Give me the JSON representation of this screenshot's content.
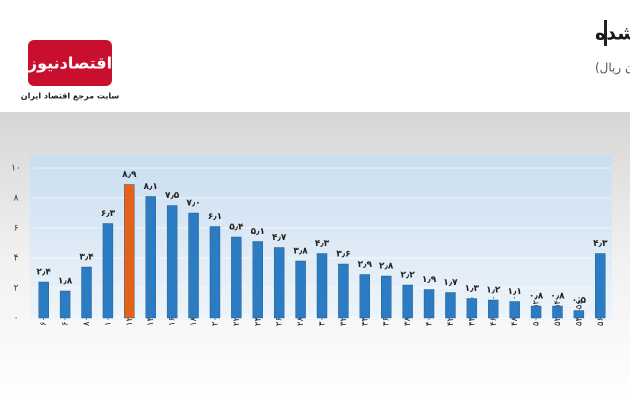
{
  "logo": {
    "name": "اقتصادنیوز",
    "tagline": "سایت مرجع اقتصاد ایران"
  },
  "chart_data": {
    "type": "bar",
    "title": "توزيع فراواني تعداد واحدهاي مسكوني معامله شده",
    "subtitle": "بر حسب قيمت يک متر مربع بنا  (ميليون ريال)",
    "categories": [
      "کمتر از ۶۰",
      "۶۰-۸۰",
      "۸۰-۱۰۰",
      "۱۰۰-۱۲۰",
      "۱۲۰-۱۴۰",
      "۱۴۰-۱۶۰",
      "۱۶۰-۱۸۰",
      "۱۸۰-۲۰۰",
      "۲۰۰-۲۲۰",
      "۲۲۰-۲۴۰",
      "۲۴۰-۲۶۰",
      "۲۶۰-۲۸۰",
      "۲۸۰-۳۰۰",
      "۳۰۰-۳۲۰",
      "۳۲۰-۳۴۰",
      "۳۴۰-۳۶۰",
      "۳۶۰-۳۸۰",
      "۳۸۰-۴۰۰",
      "۴۰۰-۴۲۰",
      "۴۲۰-۴۴۰",
      "۴۴۰-۴۶۰",
      "۴۶۰-۴۸۰",
      "۴۸۰-۵۰۰",
      "۵۰۰-۵۲۰",
      "۵۲۰-۵۴۰",
      "۵۴۰-۵۶۰",
      "بیش از ۵۶۰"
    ],
    "values": [
      2.4,
      1.8,
      3.4,
      6.3,
      8.9,
      8.1,
      7.5,
      7.0,
      6.1,
      5.4,
      5.1,
      4.7,
      3.8,
      4.3,
      3.6,
      2.9,
      2.8,
      2.2,
      1.9,
      1.7,
      1.3,
      1.2,
      1.1,
      0.8,
      0.8,
      0.5,
      4.3
    ],
    "value_labels": [
      "۲٫۴",
      "۱٫۸",
      "۳٫۴",
      "۶٫۳",
      "۸٫۹",
      "۸٫۱",
      "۷٫۵",
      "۷٫۰",
      "۶٫۱",
      "۵٫۴",
      "۵٫۱",
      "۴٫۷",
      "۳٫۸",
      "۴٫۳",
      "۳٫۶",
      "۲٫۹",
      "۲٫۸",
      "۲٫۲",
      "۱٫۹",
      "۱٫۷",
      "۱٫۳",
      "۱٫۲",
      "۱٫۱",
      "۰٫۸",
      "۰٫۸",
      "۰٫۵",
      "۴٫۳"
    ],
    "colors": [
      "#2b7cc2",
      "#2b7cc2",
      "#2b7cc2",
      "#2b7cc2",
      "#e2621b",
      "#2b7cc2",
      "#2b7cc2",
      "#2b7cc2",
      "#2b7cc2",
      "#2b7cc2",
      "#2b7cc2",
      "#2b7cc2",
      "#2b7cc2",
      "#2b7cc2",
      "#2b7cc2",
      "#2b7cc2",
      "#2b7cc2",
      "#2b7cc2",
      "#2b7cc2",
      "#2b7cc2",
      "#2b7cc2",
      "#2b7cc2",
      "#2b7cc2",
      "#2b7cc2",
      "#2b7cc2",
      "#2b7cc2",
      "#2b7cc2"
    ],
    "ylim": [
      0,
      10
    ],
    "yticks": [
      {
        "value": 0,
        "label": "۰"
      },
      {
        "value": 2,
        "label": "۲"
      },
      {
        "value": 4,
        "label": "۴"
      },
      {
        "value": 6,
        "label": "۶"
      },
      {
        "value": 8,
        "label": "۸"
      },
      {
        "value": 10,
        "label": "۱۰"
      }
    ],
    "grid": true
  }
}
